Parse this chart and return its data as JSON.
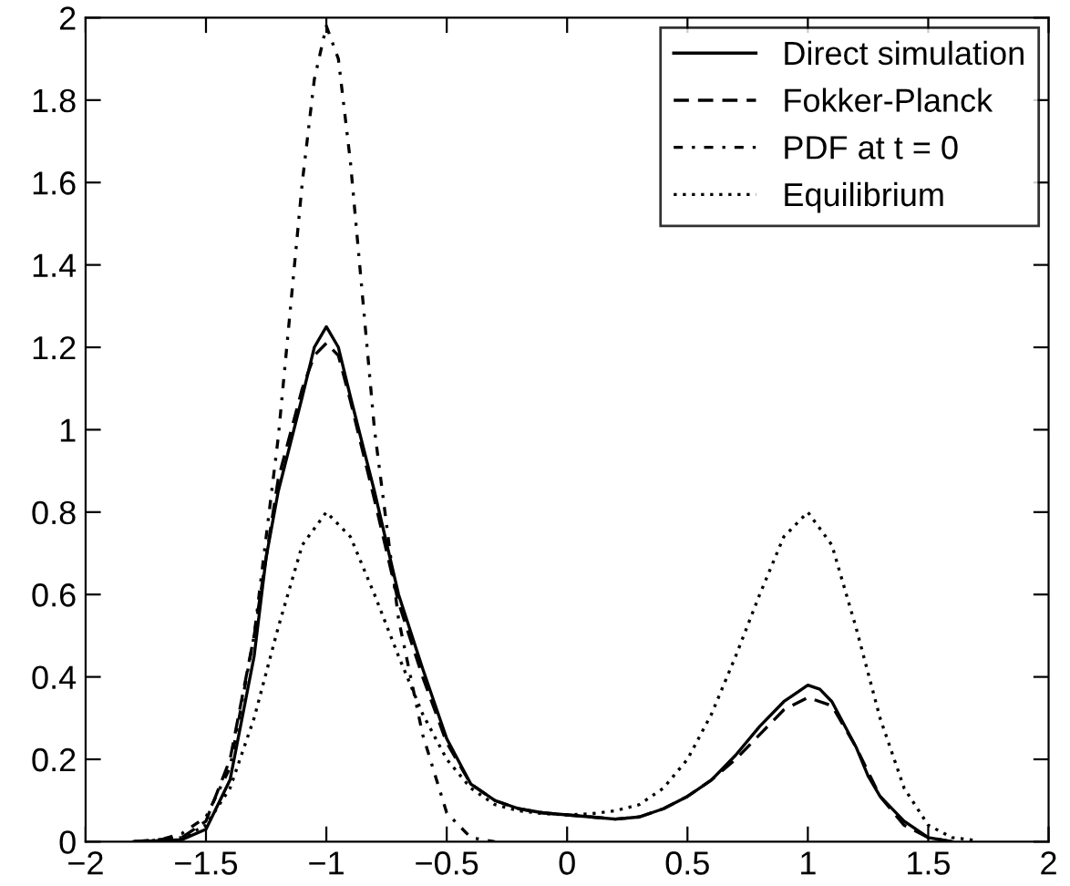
{
  "chart_data": {
    "type": "line",
    "xlim": [
      -2,
      2
    ],
    "ylim": [
      0,
      2
    ],
    "xticks": [
      {
        "value": -2,
        "label": "−2"
      },
      {
        "value": -1.5,
        "label": "−1.5"
      },
      {
        "value": -1,
        "label": "−1"
      },
      {
        "value": -0.5,
        "label": "−0.5"
      },
      0,
      0.5,
      1,
      1.5,
      2
    ],
    "yticks": [
      0,
      0.2,
      0.4,
      0.6,
      0.8,
      1,
      1.2,
      1.4,
      1.6,
      1.8,
      2
    ],
    "grid": false,
    "legend": "top right",
    "marker": "none",
    "series": [
      {
        "name": "Direct simulation",
        "color": "#000000",
        "line_style": "solid",
        "x": [
          -1.8,
          -1.6,
          -1.5,
          -1.4,
          -1.3,
          -1.25,
          -1.2,
          -1.1,
          -1.05,
          -1,
          -0.95,
          -0.9,
          -0.8,
          -0.7,
          -0.6,
          -0.5,
          -0.4,
          -0.3,
          -0.2,
          -0.1,
          0,
          0.1,
          0.2,
          0.3,
          0.4,
          0.5,
          0.6,
          0.7,
          0.8,
          0.9,
          1,
          1.05,
          1.1,
          1.2,
          1.25,
          1.3,
          1.4,
          1.5,
          1.6
        ],
        "values": [
          0,
          0.005,
          0.03,
          0.15,
          0.45,
          0.69,
          0.85,
          1.08,
          1.2,
          1.25,
          1.2,
          1.08,
          0.85,
          0.6,
          0.42,
          0.25,
          0.14,
          0.1,
          0.08,
          0.07,
          0.065,
          0.06,
          0.055,
          0.06,
          0.08,
          0.11,
          0.15,
          0.21,
          0.28,
          0.34,
          0.38,
          0.37,
          0.34,
          0.23,
          0.16,
          0.11,
          0.05,
          0.01,
          0
        ]
      },
      {
        "name": "Fokker-Planck",
        "color": "#000000",
        "line_style": "dashed",
        "x": [
          -1.8,
          -1.6,
          -1.5,
          -1.4,
          -1.3,
          -1.2,
          -1.1,
          -1.05,
          -1,
          -0.95,
          -0.9,
          -0.8,
          -0.7,
          -0.6,
          -0.5,
          -0.4,
          -0.3,
          -0.2,
          -0.1,
          0,
          0.1,
          0.2,
          0.3,
          0.4,
          0.5,
          0.6,
          0.7,
          0.8,
          0.9,
          1,
          1.1,
          1.2,
          1.3,
          1.4,
          1.5,
          1.6
        ],
        "values": [
          0,
          0.01,
          0.05,
          0.2,
          0.5,
          0.88,
          1.1,
          1.18,
          1.21,
          1.18,
          1.07,
          0.83,
          0.58,
          0.4,
          0.24,
          0.14,
          0.1,
          0.08,
          0.07,
          0.065,
          0.06,
          0.055,
          0.06,
          0.08,
          0.11,
          0.15,
          0.2,
          0.26,
          0.32,
          0.35,
          0.33,
          0.23,
          0.11,
          0.04,
          0.01,
          0
        ]
      },
      {
        "name": "PDF at t = 0",
        "color": "#000000",
        "line_style": "dashdot",
        "x": [
          -1.8,
          -1.7,
          -1.6,
          -1.5,
          -1.4,
          -1.3,
          -1.2,
          -1.1,
          -1.05,
          -1,
          -0.95,
          -0.9,
          -0.8,
          -0.7,
          -0.6,
          -0.5,
          -0.4,
          -0.3
        ],
        "values": [
          0,
          0.003,
          0.02,
          0.06,
          0.18,
          0.5,
          0.98,
          1.6,
          1.85,
          1.98,
          1.9,
          1.65,
          1.0,
          0.54,
          0.26,
          0.07,
          0.01,
          0
        ]
      },
      {
        "name": "Equilibrium",
        "color": "#000000",
        "line_style": "dotted",
        "x": [
          -1.8,
          -1.7,
          -1.6,
          -1.5,
          -1.4,
          -1.3,
          -1.2,
          -1.1,
          -1,
          -0.9,
          -0.8,
          -0.7,
          -0.6,
          -0.5,
          -0.4,
          -0.3,
          -0.2,
          -0.1,
          0,
          0.1,
          0.2,
          0.3,
          0.4,
          0.5,
          0.6,
          0.7,
          0.8,
          0.9,
          1,
          1.1,
          1.2,
          1.3,
          1.4,
          1.5,
          1.6,
          1.7
        ],
        "values": [
          0,
          0.003,
          0.01,
          0.04,
          0.13,
          0.3,
          0.52,
          0.72,
          0.8,
          0.74,
          0.6,
          0.45,
          0.31,
          0.2,
          0.13,
          0.09,
          0.075,
          0.068,
          0.065,
          0.068,
          0.075,
          0.09,
          0.13,
          0.2,
          0.31,
          0.45,
          0.6,
          0.74,
          0.8,
          0.72,
          0.52,
          0.3,
          0.13,
          0.04,
          0.01,
          0.003
        ]
      }
    ]
  }
}
